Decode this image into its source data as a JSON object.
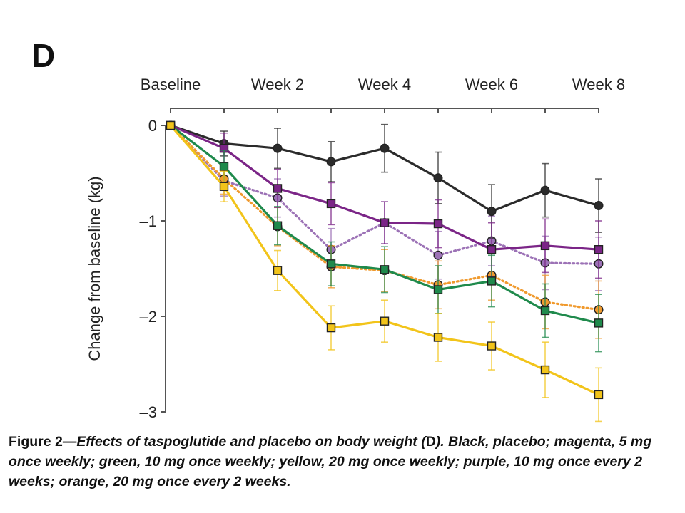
{
  "panel_label": "D",
  "chart_data": {
    "type": "line",
    "x_axis_position": "top",
    "xticks": [
      "Baseline",
      "Week 2",
      "Week 4",
      "Week 6",
      "Week 8"
    ],
    "x": [
      0,
      1,
      2,
      3,
      4,
      5,
      6,
      7,
      8
    ],
    "ylabel": "Change from baseline (kg)",
    "ylim": [
      -3,
      0
    ],
    "yticks": [
      0,
      -1,
      -2,
      -3
    ],
    "ytick_labels": [
      "0",
      "–1",
      "–2",
      "–3"
    ],
    "grid": false,
    "series": [
      {
        "name": "Black, placebo",
        "color": "#2b2b2b",
        "marker": "circle",
        "dotted": false,
        "values": [
          0,
          -0.19,
          -0.24,
          -0.38,
          -0.24,
          -0.55,
          -0.9,
          -0.68,
          -0.84
        ],
        "errors": [
          0,
          0.13,
          0.21,
          0.21,
          0.25,
          0.27,
          0.28,
          0.28,
          0.28
        ]
      },
      {
        "name": "magenta, 5 mg once weekly",
        "color": "#7b2587",
        "marker": "square",
        "dotted": false,
        "values": [
          0,
          -0.24,
          -0.66,
          -0.82,
          -1.02,
          -1.03,
          -1.3,
          -1.26,
          -1.3
        ],
        "errors": [
          0,
          0.16,
          0.2,
          0.22,
          0.22,
          0.25,
          0.28,
          0.28,
          0.3
        ]
      },
      {
        "name": "green, 10 mg once weekly",
        "color": "#1f8a4c",
        "marker": "square",
        "dotted": false,
        "values": [
          0,
          -0.43,
          -1.05,
          -1.45,
          -1.51,
          -1.72,
          -1.63,
          -1.94,
          -2.07
        ],
        "errors": [
          0,
          0.17,
          0.2,
          0.23,
          0.24,
          0.25,
          0.27,
          0.28,
          0.3
        ]
      },
      {
        "name": "yellow, 20 mg once weekly",
        "color": "#f2c41a",
        "marker": "square",
        "dotted": false,
        "values": [
          0,
          -0.64,
          -1.52,
          -2.12,
          -2.05,
          -2.22,
          -2.31,
          -2.56,
          -2.82
        ],
        "errors": [
          0,
          0.16,
          0.21,
          0.23,
          0.22,
          0.25,
          0.25,
          0.29,
          0.28
        ]
      },
      {
        "name": "purple, 10 mg once every 2 weeks",
        "color": "#9c72b6",
        "marker": "circle",
        "dotted": true,
        "values": [
          0,
          -0.58,
          -0.76,
          -1.3,
          -1.02,
          -1.36,
          -1.21,
          -1.44,
          -1.45
        ],
        "errors": [
          0,
          0.16,
          0.2,
          0.22,
          0.22,
          0.25,
          0.26,
          0.28,
          0.28
        ]
      },
      {
        "name": "orange, 20 mg once every 2 weeks",
        "color": "#f09a2e",
        "marker": "circle",
        "dotted": true,
        "values": [
          0,
          -0.56,
          -1.06,
          -1.48,
          -1.52,
          -1.67,
          -1.57,
          -1.85,
          -1.93
        ],
        "errors": [
          0,
          0.16,
          0.2,
          0.22,
          0.22,
          0.25,
          0.26,
          0.28,
          0.3
        ]
      }
    ]
  },
  "caption": {
    "prefix": "Figure 2—",
    "body": "Effects of taspoglutide and placebo on body weight (",
    "d_letter": "D",
    "suffix": "). Black, placebo; magenta, 5 mg once weekly; green, 10 mg once weekly; yellow, 20 mg once weekly; purple, 10 mg once every 2 weeks; orange, 20 mg once every 2 weeks."
  }
}
